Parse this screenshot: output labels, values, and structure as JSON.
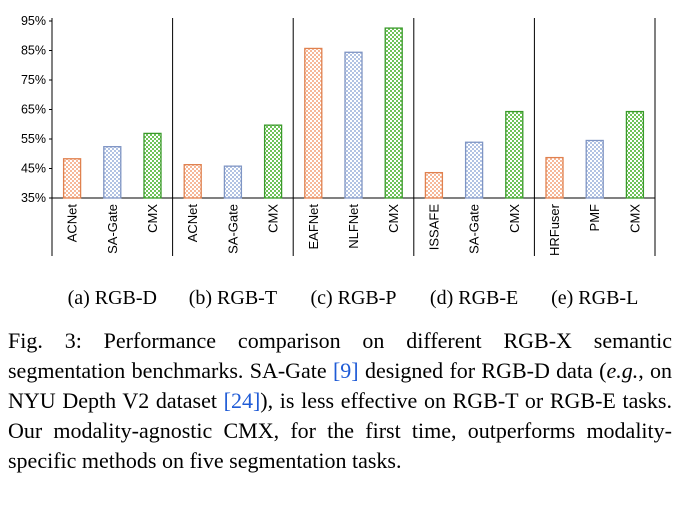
{
  "chart_data": {
    "type": "bar",
    "yaxis": {
      "min": 35,
      "max": 95,
      "step": 10,
      "tick_format": "{v}%"
    },
    "groups": [
      {
        "label": "(a) RGB-D",
        "bars": [
          {
            "method": "ACNet",
            "value": 48.3,
            "pattern": "orange"
          },
          {
            "method": "SA-Gate",
            "value": 52.4,
            "pattern": "blue"
          },
          {
            "method": "CMX",
            "value": 56.9,
            "pattern": "green"
          }
        ]
      },
      {
        "label": "(b) RGB-T",
        "bars": [
          {
            "method": "ACNet",
            "value": 46.3,
            "pattern": "orange"
          },
          {
            "method": "SA-Gate",
            "value": 45.8,
            "pattern": "blue"
          },
          {
            "method": "CMX",
            "value": 59.7,
            "pattern": "green"
          }
        ]
      },
      {
        "label": "(c) RGB-P",
        "bars": [
          {
            "method": "EAFNet",
            "value": 85.7,
            "pattern": "orange"
          },
          {
            "method": "NLFNet",
            "value": 84.4,
            "pattern": "blue"
          },
          {
            "method": "CMX",
            "value": 92.6,
            "pattern": "green"
          }
        ]
      },
      {
        "label": "(d) RGB-E",
        "bars": [
          {
            "method": "ISSAFE",
            "value": 43.6,
            "pattern": "orange"
          },
          {
            "method": "SA-Gate",
            "value": 53.9,
            "pattern": "blue"
          },
          {
            "method": "CMX",
            "value": 64.3,
            "pattern": "green"
          }
        ]
      },
      {
        "label": "(e) RGB-L",
        "bars": [
          {
            "method": "HRFuser",
            "value": 48.7,
            "pattern": "orange"
          },
          {
            "method": "PMF",
            "value": 54.5,
            "pattern": "blue"
          },
          {
            "method": "CMX",
            "value": 64.3,
            "pattern": "green"
          }
        ]
      }
    ],
    "pattern_colors": {
      "orange": {
        "stroke": "#e0814f",
        "fill": "#f6b899"
      },
      "blue": {
        "stroke": "#7f95c4",
        "fill": "#b2c3e3"
      },
      "green": {
        "stroke": "#3a9a2a",
        "fill": "#6fc35a"
      }
    }
  },
  "caption": {
    "p1": "Fig. 3: Performance comparison on different RGB-X semantic segmentation benchmarks. SA-Gate ",
    "cite1": "[9]",
    "p2": " designed for RGB-D data (",
    "eg": "e.g.",
    "p3": ", on NYU Depth V2 dataset ",
    "cite2": "[24]",
    "p4": "), is less effective on RGB-T or RGB-E tasks. Our modality-agnostic CMX, for the first time, outperforms modality-specific methods on five segmentation tasks."
  }
}
